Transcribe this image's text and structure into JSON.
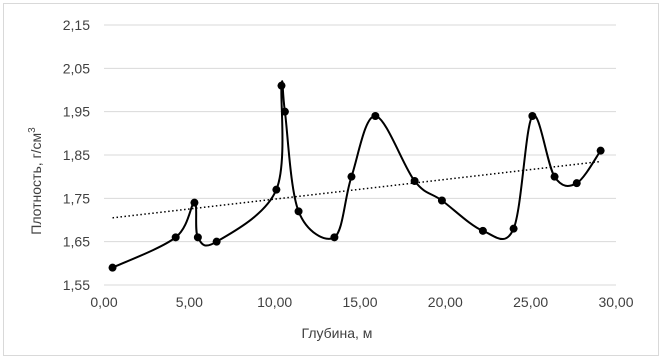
{
  "chart_data": {
    "type": "scatter",
    "title": "",
    "xlabel": "Глубина, м",
    "ylabel": "Плотность, г/см³",
    "ylabel_base": "Плотность, г/см",
    "ylabel_sup": "3",
    "xlim": [
      0,
      30
    ],
    "ylim": [
      1.55,
      2.15
    ],
    "x_ticks": [
      0,
      5,
      10,
      15,
      20,
      25,
      30
    ],
    "x_tick_labels": [
      "0,00",
      "5,00",
      "10,00",
      "15,00",
      "20,00",
      "25,00",
      "30,00"
    ],
    "y_ticks": [
      1.55,
      1.65,
      1.75,
      1.85,
      1.95,
      2.05,
      2.15
    ],
    "y_tick_labels": [
      "1,55",
      "1,65",
      "1,75",
      "1,85",
      "1,95",
      "2,05",
      "2,15"
    ],
    "grid": "horizontal",
    "legend": "none",
    "series": [
      {
        "style": "smooth-line-with-markers",
        "color": "#000000",
        "points": [
          {
            "x": 0.5,
            "y": 1.59
          },
          {
            "x": 4.2,
            "y": 1.66
          },
          {
            "x": 5.3,
            "y": 1.74
          },
          {
            "x": 5.5,
            "y": 1.66
          },
          {
            "x": 6.6,
            "y": 1.65
          },
          {
            "x": 10.1,
            "y": 1.77
          },
          {
            "x": 10.4,
            "y": 2.01
          },
          {
            "x": 10.6,
            "y": 1.95
          },
          {
            "x": 11.4,
            "y": 1.72
          },
          {
            "x": 13.5,
            "y": 1.66
          },
          {
            "x": 14.5,
            "y": 1.8
          },
          {
            "x": 15.9,
            "y": 1.94
          },
          {
            "x": 18.2,
            "y": 1.79
          },
          {
            "x": 19.8,
            "y": 1.745
          },
          {
            "x": 22.2,
            "y": 1.675
          },
          {
            "x": 24.0,
            "y": 1.68
          },
          {
            "x": 25.1,
            "y": 1.94
          },
          {
            "x": 26.4,
            "y": 1.8
          },
          {
            "x": 27.7,
            "y": 1.785
          },
          {
            "x": 29.1,
            "y": 1.86
          }
        ]
      },
      {
        "style": "dotted-trendline",
        "color": "#000000",
        "points": [
          {
            "x": 0.5,
            "y": 1.705
          },
          {
            "x": 29.1,
            "y": 1.835
          }
        ]
      }
    ]
  }
}
